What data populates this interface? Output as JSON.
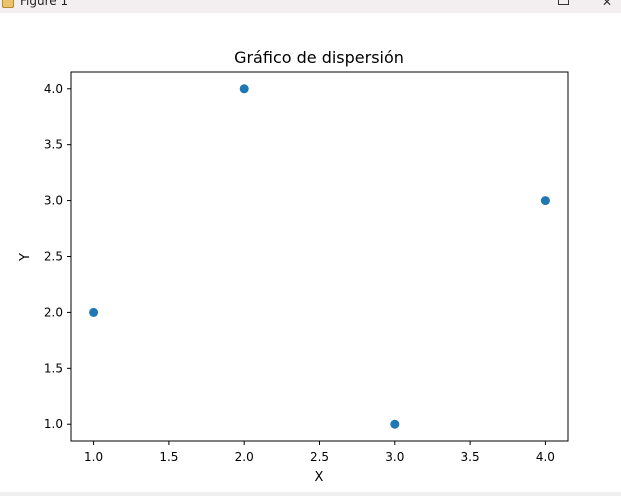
{
  "window": {
    "title": "Figure 1",
    "close_glyph": "✕"
  },
  "chart_data": {
    "type": "scatter",
    "title": "Gráfico de dispersión",
    "xlabel": "X",
    "ylabel": "Y",
    "x": [
      1,
      2,
      3,
      4
    ],
    "y": [
      2,
      4,
      1,
      3
    ],
    "xlim": [
      0.85,
      4.15
    ],
    "ylim": [
      0.85,
      4.15
    ],
    "xticks": [
      "1.0",
      "1.5",
      "2.0",
      "2.5",
      "3.0",
      "3.5",
      "4.0"
    ],
    "yticks": [
      "1.0",
      "1.5",
      "2.0",
      "2.5",
      "3.0",
      "3.5",
      "4.0"
    ],
    "marker_color": "#1f77b4",
    "grid": false,
    "legend": false
  }
}
